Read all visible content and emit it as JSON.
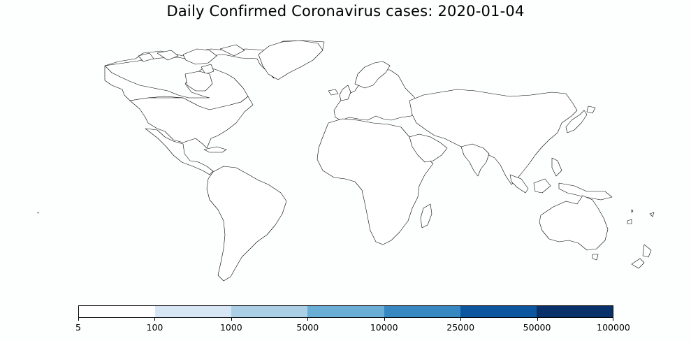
{
  "title": "Daily Confirmed Coronavirus cases: 2020-01-04",
  "colorbar": {
    "colors": [
      "#ffffff",
      "#d6e6f4",
      "#abd0e6",
      "#6aaed6",
      "#3787c0",
      "#0c56a0",
      "#08306b"
    ],
    "ticks": [
      "5",
      "100",
      "1000",
      "5000",
      "10000",
      "25000",
      "50000",
      "100000"
    ]
  }
}
